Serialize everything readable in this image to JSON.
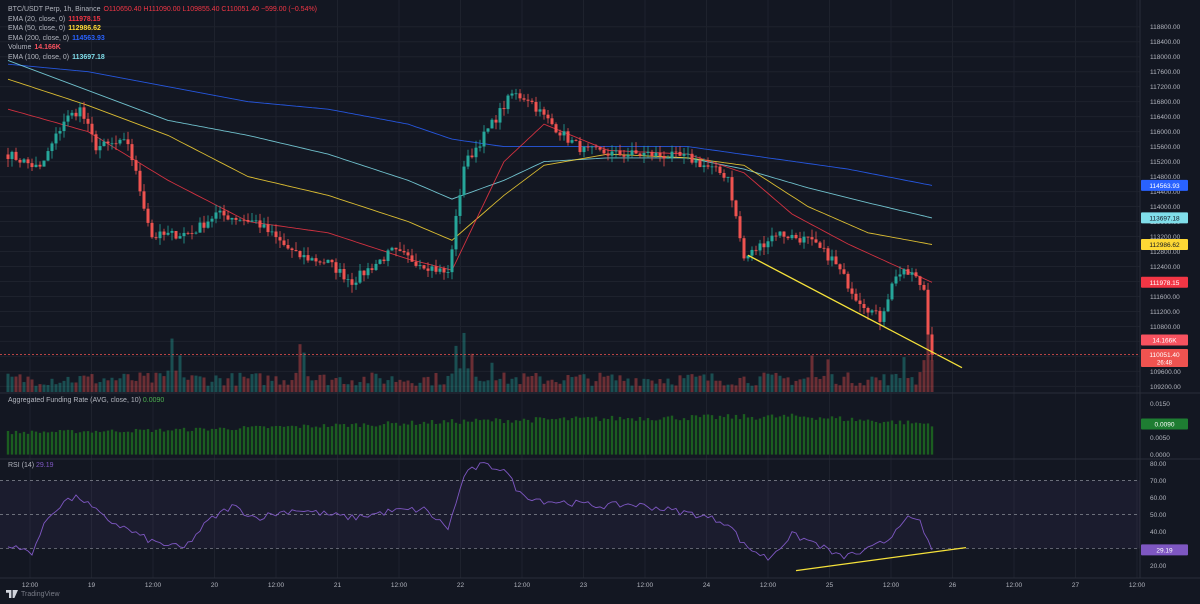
{
  "header": {
    "symbol": "BTC/USDT Perp, 1h, Binance",
    "ohlc": "O110650.40 H111090.00 L109855.40 C110051.40 −599.00 (−0.54%)"
  },
  "indicators": [
    {
      "label": "EMA (20, close, 0)",
      "value": "111978.15",
      "color": "#f23645"
    },
    {
      "label": "EMA (50, close, 0)",
      "value": "112986.62",
      "color": "#fdd835"
    },
    {
      "label": "EMA (200, close, 0)",
      "value": "114563.93",
      "color": "#2962ff"
    },
    {
      "label": "Volume",
      "value": "14.166K",
      "color": "#f7525f"
    },
    {
      "label": "EMA (100, close, 0)",
      "value": "113697.18",
      "color": "#80deea"
    }
  ],
  "funding": {
    "label": "Aggregated Funding Rate (AVG, close, 10)",
    "value": "0.0090",
    "badge": "0.0090",
    "ticks": [
      "0.0150",
      "0.0100",
      "0.0050",
      "0.0000"
    ]
  },
  "rsi": {
    "label": "RSI (14)",
    "value": "29.19",
    "badge": "29.19",
    "ticks": [
      "80.00",
      "70.00",
      "60.00",
      "50.00",
      "40.00",
      "30.00",
      "20.00"
    ]
  },
  "price_axis": {
    "ticks": [
      "118800.00",
      "118400.00",
      "118000.00",
      "117600.00",
      "117200.00",
      "116800.00",
      "116400.00",
      "116000.00",
      "115600.00",
      "115200.00",
      "114800.00",
      "114400.00",
      "114000.00",
      "113600.00",
      "113200.00",
      "112800.00",
      "112400.00",
      "112000.00",
      "111600.00",
      "111200.00",
      "110800.00",
      "110400.00",
      "110000.00",
      "109600.00",
      "109200.00"
    ],
    "badges": {
      "ema200": "114563.93",
      "ema100": "113697.18",
      "ema50": "112986.62",
      "ema20": "111978.15",
      "volume": "14.166K",
      "last_price": "110051.40",
      "countdown": "26:48"
    }
  },
  "time_axis": {
    "labels": [
      "12:00",
      "19",
      "12:00",
      "20",
      "12:00",
      "21",
      "12:00",
      "22",
      "12:00",
      "23",
      "12:00",
      "24",
      "12:00",
      "25",
      "12:00",
      "26",
      "12:00",
      "27",
      "12:00"
    ]
  },
  "colors": {
    "up": "#26a69a",
    "down": "#ef5350",
    "ema20": "#f23645",
    "ema50": "#fdd835",
    "ema100": "#80deea",
    "ema200": "#2962ff",
    "trendline": "#f5e13a",
    "rsi": "#7e57c2",
    "funding": "#1b5e20"
  },
  "footer": {
    "brand": "TradingView"
  },
  "chart_data": [
    {
      "type": "candlestick",
      "title": "BTC/USDT Perp, 1h, Binance",
      "ylim": [
        109050,
        119300
      ],
      "price_keypoints": [
        [
          0,
          115400
        ],
        [
          8,
          115000
        ],
        [
          14,
          116300
        ],
        [
          18,
          116600
        ],
        [
          22,
          115600
        ],
        [
          30,
          115700
        ],
        [
          36,
          113200
        ],
        [
          46,
          113300
        ],
        [
          52,
          113800
        ],
        [
          62,
          113600
        ],
        [
          72,
          112700
        ],
        [
          80,
          112500
        ],
        [
          86,
          112000
        ],
        [
          96,
          112800
        ],
        [
          110,
          112200
        ],
        [
          114,
          115100
        ],
        [
          126,
          117000
        ],
        [
          130,
          116900
        ],
        [
          134,
          116400
        ],
        [
          140,
          115800
        ],
        [
          144,
          115500
        ],
        [
          152,
          115400
        ],
        [
          160,
          115400
        ],
        [
          170,
          115300
        ],
        [
          178,
          114900
        ],
        [
          180,
          114800
        ],
        [
          184,
          112600
        ],
        [
          192,
          113300
        ],
        [
          200,
          113100
        ],
        [
          206,
          112600
        ],
        [
          212,
          111600
        ],
        [
          218,
          111000
        ],
        [
          222,
          112200
        ],
        [
          226,
          112200
        ],
        [
          229,
          111800
        ],
        [
          230,
          110700
        ],
        [
          231,
          110051
        ]
      ],
      "ema_keypoints": {
        "ema20": [
          [
            0,
            116600
          ],
          [
            20,
            116000
          ],
          [
            40,
            114700
          ],
          [
            60,
            113600
          ],
          [
            80,
            113300
          ],
          [
            100,
            112600
          ],
          [
            111,
            112300
          ],
          [
            124,
            115200
          ],
          [
            134,
            116200
          ],
          [
            150,
            115500
          ],
          [
            170,
            115400
          ],
          [
            184,
            114900
          ],
          [
            196,
            113800
          ],
          [
            210,
            113000
          ],
          [
            231,
            111978
          ]
        ],
        "ema50": [
          [
            0,
            117400
          ],
          [
            20,
            116700
          ],
          [
            40,
            115900
          ],
          [
            60,
            114800
          ],
          [
            80,
            114300
          ],
          [
            100,
            113600
          ],
          [
            111,
            113100
          ],
          [
            124,
            114300
          ],
          [
            134,
            115100
          ],
          [
            150,
            115400
          ],
          [
            170,
            115300
          ],
          [
            184,
            115100
          ],
          [
            200,
            114000
          ],
          [
            215,
            113300
          ],
          [
            231,
            112987
          ]
        ],
        "ema100": [
          [
            0,
            117900
          ],
          [
            20,
            117100
          ],
          [
            40,
            116300
          ],
          [
            60,
            115900
          ],
          [
            80,
            115400
          ],
          [
            100,
            114700
          ],
          [
            111,
            114200
          ],
          [
            124,
            114700
          ],
          [
            134,
            115200
          ],
          [
            150,
            115300
          ],
          [
            170,
            115300
          ],
          [
            184,
            115000
          ],
          [
            200,
            114500
          ],
          [
            215,
            114100
          ],
          [
            231,
            113697
          ]
        ],
        "ema200": [
          [
            0,
            117800
          ],
          [
            20,
            117600
          ],
          [
            40,
            117200
          ],
          [
            60,
            116800
          ],
          [
            80,
            116600
          ],
          [
            100,
            116200
          ],
          [
            111,
            115800
          ],
          [
            124,
            115600
          ],
          [
            134,
            115600
          ],
          [
            150,
            115600
          ],
          [
            170,
            115600
          ],
          [
            190,
            115300
          ],
          [
            210,
            115000
          ],
          [
            231,
            114564
          ]
        ]
      },
      "volume_baseline": 2200,
      "volume_spikes": [
        [
          41,
          9500
        ],
        [
          43,
          6500
        ],
        [
          73,
          8500
        ],
        [
          74,
          7000
        ],
        [
          112,
          8200
        ],
        [
          114,
          10500
        ],
        [
          116,
          6800
        ],
        [
          121,
          5200
        ],
        [
          201,
          6500
        ],
        [
          205,
          5800
        ],
        [
          224,
          6200
        ],
        [
          230,
          14166
        ]
      ],
      "trendline": [
        [
          109.9,
          0
        ],
        [
          0,
          0
        ]
      ]
    },
    {
      "type": "bar",
      "title": "Aggregated Funding Rate (AVG, close, 10)",
      "ylim": [
        -0.001,
        0.0175
      ],
      "keypoints": [
        [
          0,
          0.0065
        ],
        [
          40,
          0.0072
        ],
        [
          80,
          0.0085
        ],
        [
          120,
          0.01
        ],
        [
          160,
          0.0108
        ],
        [
          200,
          0.0112
        ],
        [
          215,
          0.01
        ],
        [
          231,
          0.009
        ]
      ]
    },
    {
      "type": "line",
      "title": "RSI (14)",
      "ylim": [
        15,
        82
      ],
      "keypoints": [
        [
          0,
          31
        ],
        [
          6,
          28
        ],
        [
          10,
          48
        ],
        [
          14,
          58
        ],
        [
          18,
          60
        ],
        [
          24,
          48
        ],
        [
          36,
          34
        ],
        [
          44,
          30
        ],
        [
          50,
          46
        ],
        [
          56,
          55
        ],
        [
          62,
          48
        ],
        [
          72,
          53
        ],
        [
          80,
          50
        ],
        [
          86,
          48
        ],
        [
          96,
          52
        ],
        [
          104,
          53
        ],
        [
          110,
          42
        ],
        [
          112,
          56
        ],
        [
          114,
          73
        ],
        [
          118,
          79
        ],
        [
          124,
          77
        ],
        [
          128,
          62
        ],
        [
          134,
          58
        ],
        [
          140,
          57
        ],
        [
          148,
          55
        ],
        [
          156,
          56
        ],
        [
          162,
          54
        ],
        [
          172,
          50
        ],
        [
          180,
          45
        ],
        [
          184,
          32
        ],
        [
          190,
          24
        ],
        [
          196,
          38
        ],
        [
          202,
          33
        ],
        [
          208,
          25
        ],
        [
          214,
          28
        ],
        [
          220,
          35
        ],
        [
          224,
          48
        ],
        [
          228,
          45
        ],
        [
          231,
          29.19
        ]
      ],
      "levels": [
        70,
        50,
        30
      ]
    }
  ]
}
